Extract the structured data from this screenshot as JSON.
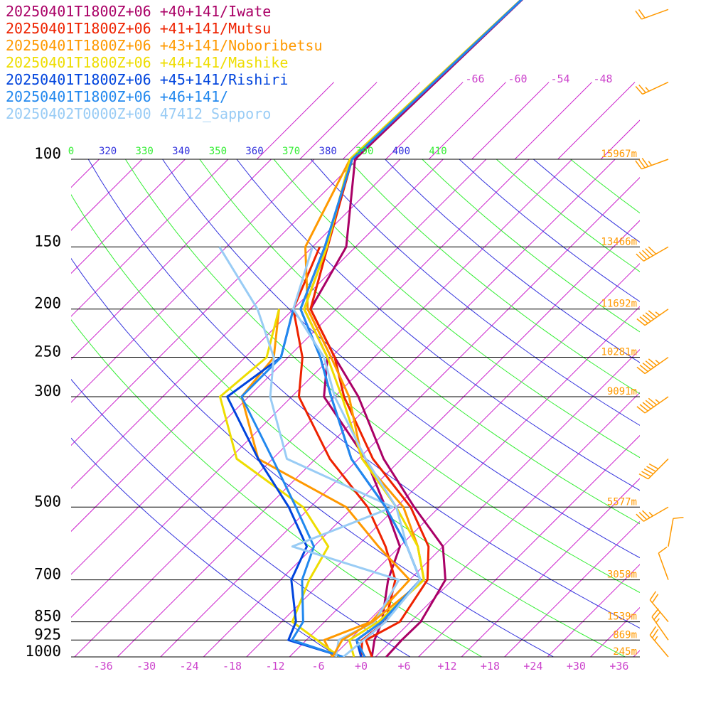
{
  "legend": [
    {
      "text": "20250401T1800Z+06 +40+141/Iwate",
      "color": "#aa0066"
    },
    {
      "text": "20250401T1800Z+06 +41+141/Mutsu",
      "color": "#ee2200"
    },
    {
      "text": "20250401T1800Z+06 +43+141/Noboribetsu",
      "color": "#ff9900"
    },
    {
      "text": "20250401T1800Z+06 +44+141/Mashike",
      "color": "#eedd00"
    },
    {
      "text": "20250401T1800Z+06 +45+141/Rishiri",
      "color": "#0044dd"
    },
    {
      "text": "20250401T1800Z+06 +46+141/",
      "color": "#2288ee"
    },
    {
      "text": "20250402T0000Z+00 47412_Sapporo",
      "color": "#99ccf5"
    }
  ],
  "colors": {
    "isotherm": "#cc22cc",
    "dry_adiabat": "#33ee33",
    "moist_adiabat": "#3333dd",
    "height_label": "#ff9900",
    "wind_barb": "#ff9900",
    "pressure_line": "#000000"
  },
  "chart_data": {
    "type": "line",
    "subtype": "skew-T log-P diagram",
    "xlabel": "",
    "ylabel": "",
    "x_ticks": [
      "-36",
      "-30",
      "-24",
      "-18",
      "-12",
      "-6",
      "+0",
      "+6",
      "+12",
      "+18",
      "+24",
      "+30",
      "+36"
    ],
    "upper_temperature_labels": [
      "-66",
      "-60",
      "-54",
      "-48"
    ],
    "theta_labels": [
      {
        "text": "0",
        "family": "dry"
      },
      {
        "text": "320",
        "family": "moist"
      },
      {
        "text": "330",
        "family": "dry"
      },
      {
        "text": "340",
        "family": "moist"
      },
      {
        "text": "350",
        "family": "dry"
      },
      {
        "text": "360",
        "family": "moist"
      },
      {
        "text": "370",
        "family": "dry"
      },
      {
        "text": "380",
        "family": "moist"
      },
      {
        "text": "390",
        "family": "dry"
      },
      {
        "text": "400",
        "family": "moist"
      },
      {
        "text": "410",
        "family": "dry"
      }
    ],
    "pressure_levels": [
      {
        "p": 100,
        "label": "100",
        "height": "15967m"
      },
      {
        "p": 150,
        "label": "150",
        "height": "13466m"
      },
      {
        "p": 200,
        "label": "200",
        "height": "11692m"
      },
      {
        "p": 250,
        "label": "250",
        "height": "10281m"
      },
      {
        "p": 300,
        "label": "300",
        "height": "9091m"
      },
      {
        "p": 500,
        "label": "500",
        "height": "5577m"
      },
      {
        "p": 700,
        "label": "700",
        "height": "3058m"
      },
      {
        "p": 850,
        "label": "850",
        "height": "1539m"
      },
      {
        "p": 925,
        "label": "925",
        "height": "869m"
      },
      {
        "p": 1000,
        "label": "1000",
        "height": "245m"
      }
    ],
    "ylim": [
      1000,
      100
    ],
    "series": [
      {
        "name": "20250401T1800Z+06 +40+141/Iwate",
        "kind": "temperature",
        "points": [
          [
            1000,
            3.5
          ],
          [
            925,
            3.3
          ],
          [
            850,
            3.4
          ],
          [
            700,
            1.0
          ],
          [
            600,
            -4.0
          ],
          [
            500,
            -13.5
          ],
          [
            400,
            -24.5
          ],
          [
            300,
            -36.7
          ],
          [
            250,
            -45.5
          ],
          [
            200,
            -55.6
          ],
          [
            150,
            -59.3
          ],
          [
            100,
            -70.3
          ],
          [
            40,
            -69.0
          ]
        ]
      },
      {
        "name": "20250401T1800Z+06 +41+141/Mutsu",
        "kind": "temperature",
        "points": [
          [
            1000,
            1.5
          ],
          [
            925,
            -1.7
          ],
          [
            850,
            0.5
          ],
          [
            700,
            -1.5
          ],
          [
            600,
            -6.0
          ],
          [
            500,
            -14.0
          ],
          [
            400,
            -26.0
          ],
          [
            300,
            -38.7
          ],
          [
            250,
            -45.5
          ],
          [
            200,
            -55.6
          ],
          [
            150,
            -61.9
          ],
          [
            100,
            -70.7
          ],
          [
            40,
            -69.0
          ]
        ]
      },
      {
        "name": "20250401T1800Z+06 +43+141/Noboribetsu",
        "kind": "temperature",
        "points": [
          [
            1000,
            -4.0
          ],
          [
            925,
            -5.0
          ],
          [
            850,
            -3.3
          ],
          [
            700,
            -2.0
          ],
          [
            600,
            -7.5
          ],
          [
            500,
            -15.0
          ],
          [
            400,
            -27.5
          ],
          [
            300,
            -38.0
          ],
          [
            250,
            -46.0
          ],
          [
            200,
            -56.0
          ],
          [
            150,
            -65.0
          ],
          [
            100,
            -71.0
          ],
          [
            40,
            -69.0
          ]
        ]
      },
      {
        "name": "20250401T1800Z+06 +44+141/Mashike",
        "kind": "temperature",
        "points": [
          [
            1000,
            -1.0
          ],
          [
            925,
            -4.0
          ],
          [
            850,
            -2.5
          ],
          [
            700,
            -2.0
          ],
          [
            600,
            -7.5
          ],
          [
            500,
            -16.0
          ],
          [
            400,
            -27.5
          ],
          [
            300,
            -39.0
          ],
          [
            250,
            -46.5
          ],
          [
            200,
            -56.5
          ],
          [
            150,
            -62.0
          ],
          [
            100,
            -71.0
          ],
          [
            40,
            -69.0
          ]
        ]
      },
      {
        "name": "20250401T1800Z+06 +45+141/Rishiri",
        "kind": "temperature",
        "points": [
          [
            1000,
            0.0
          ],
          [
            925,
            -3.0
          ],
          [
            850,
            -2.0
          ],
          [
            700,
            -2.5
          ],
          [
            600,
            -9.0
          ],
          [
            500,
            -17.5
          ],
          [
            400,
            -29.0
          ],
          [
            300,
            -40.5
          ],
          [
            250,
            -47.5
          ],
          [
            200,
            -57.0
          ],
          [
            150,
            -62.3
          ],
          [
            100,
            -70.7
          ],
          [
            40,
            -69.0
          ]
        ]
      },
      {
        "name": "20250401T1800Z+06 +46+141/",
        "kind": "temperature",
        "points": [
          [
            1000,
            0.5
          ],
          [
            925,
            -3.0
          ],
          [
            850,
            -2.0
          ],
          [
            700,
            -2.5
          ],
          [
            600,
            -9.0
          ],
          [
            500,
            -17.5
          ],
          [
            400,
            -29.0
          ],
          [
            300,
            -40.5
          ],
          [
            250,
            -47.5
          ],
          [
            200,
            -57.0
          ],
          [
            150,
            -62.3
          ],
          [
            100,
            -70.7
          ],
          [
            40,
            -69.0
          ]
        ]
      },
      {
        "name": "20250402T0000Z+00 47412_Sapporo",
        "kind": "temperature",
        "points": [
          [
            1000,
            -2.5
          ],
          [
            925,
            -2.0
          ],
          [
            850,
            -1.5
          ],
          [
            700,
            -2.5
          ],
          [
            600,
            -9.0
          ],
          [
            500,
            -16.0
          ],
          [
            400,
            -27.0
          ],
          [
            300,
            -40.0
          ],
          [
            250,
            -47.0
          ],
          [
            200,
            -58.0
          ],
          [
            150,
            -64.0
          ]
        ]
      },
      {
        "name": "20250401T1800Z+06 +40+141/Iwate",
        "kind": "dewpoint",
        "points": [
          [
            1000,
            1.5
          ],
          [
            925,
            -0.5
          ],
          [
            850,
            -2.0
          ],
          [
            700,
            -7.0
          ],
          [
            600,
            -10.0
          ],
          [
            500,
            -17.5
          ],
          [
            400,
            -27.0
          ],
          [
            300,
            -41.5
          ],
          [
            250,
            -46.5
          ],
          [
            200,
            -56.5
          ],
          [
            150,
            -62.0
          ]
        ]
      },
      {
        "name": "20250401T1800Z+06 +41+141/Mutsu",
        "kind": "dewpoint",
        "points": [
          [
            1000,
            0.0
          ],
          [
            925,
            -2.2
          ],
          [
            850,
            -1.5
          ],
          [
            700,
            -6.0
          ],
          [
            600,
            -12.0
          ],
          [
            500,
            -20.0
          ],
          [
            400,
            -32.0
          ],
          [
            300,
            -45.0
          ],
          [
            250,
            -50.0
          ],
          [
            200,
            -58.0
          ],
          [
            150,
            -63.0
          ]
        ]
      },
      {
        "name": "20250401T1800Z+06 +43+141/Noboribetsu",
        "kind": "dewpoint",
        "points": [
          [
            1000,
            -4.0
          ],
          [
            925,
            -7.5
          ],
          [
            850,
            -3.5
          ],
          [
            700,
            -4.0
          ],
          [
            600,
            -13.0
          ],
          [
            500,
            -23.0
          ],
          [
            400,
            -42.0
          ],
          [
            300,
            -53.0
          ],
          [
            250,
            -54.0
          ],
          [
            200,
            -60.0
          ]
        ]
      },
      {
        "name": "20250401T1800Z+06 +44+141/Mashike",
        "kind": "dewpoint",
        "points": [
          [
            1000,
            -3.0
          ],
          [
            925,
            -8.5
          ],
          [
            850,
            -14.5
          ],
          [
            700,
            -18.0
          ],
          [
            600,
            -20.0
          ],
          [
            500,
            -29.0
          ],
          [
            400,
            -45.0
          ],
          [
            300,
            -56.0
          ],
          [
            250,
            -55.0
          ],
          [
            200,
            -60.0
          ]
        ]
      },
      {
        "name": "20250401T1800Z+06 +45+141/Rishiri",
        "kind": "dewpoint",
        "points": [
          [
            1000,
            -2.5
          ],
          [
            925,
            -12.5
          ],
          [
            850,
            -14.0
          ],
          [
            700,
            -20.5
          ],
          [
            600,
            -23.0
          ],
          [
            500,
            -31.0
          ],
          [
            400,
            -42.0
          ],
          [
            300,
            -55.0
          ],
          [
            250,
            -53.0
          ],
          [
            200,
            -58.0
          ]
        ]
      },
      {
        "name": "20250401T1800Z+06 +46+141/",
        "kind": "dewpoint",
        "points": [
          [
            1000,
            -2.5
          ],
          [
            925,
            -12.0
          ],
          [
            850,
            -13.0
          ],
          [
            700,
            -19.0
          ],
          [
            600,
            -22.0
          ],
          [
            500,
            -30.0
          ],
          [
            400,
            -40.0
          ],
          [
            300,
            -53.0
          ],
          [
            250,
            -53.0
          ],
          [
            200,
            -58.0
          ]
        ]
      },
      {
        "name": "20250402T0000Z+00 47412_Sapporo",
        "kind": "dewpoint",
        "points": [
          [
            1000,
            -3.5
          ],
          [
            925,
            -5.5
          ],
          [
            850,
            -3.0
          ],
          [
            700,
            -5.5
          ],
          [
            600,
            -25.0
          ],
          [
            500,
            -16.5
          ],
          [
            400,
            -38.0
          ],
          [
            300,
            -49.0
          ],
          [
            250,
            -54.0
          ],
          [
            200,
            -63.0
          ],
          [
            150,
            -77.0
          ]
        ]
      }
    ],
    "wind_barbs": [
      {
        "p": 1000,
        "speed_kt": 25,
        "dir_deg": 320
      },
      {
        "p": 925,
        "speed_kt": 25,
        "dir_deg": 325
      },
      {
        "p": 850,
        "speed_kt": 20,
        "dir_deg": 320
      },
      {
        "p": 700,
        "speed_kt": 10,
        "dir_deg": 340
      },
      {
        "p": 600,
        "speed_kt": 10,
        "dir_deg": 10
      },
      {
        "p": 500,
        "speed_kt": 35,
        "dir_deg": 240
      },
      {
        "p": 400,
        "speed_kt": 50,
        "dir_deg": 225
      },
      {
        "p": 300,
        "speed_kt": 55,
        "dir_deg": 235
      },
      {
        "p": 250,
        "speed_kt": 55,
        "dir_deg": 235
      },
      {
        "p": 200,
        "speed_kt": 55,
        "dir_deg": 235
      },
      {
        "p": 150,
        "speed_kt": 50,
        "dir_deg": 240
      },
      {
        "p": 100,
        "speed_kt": 35,
        "dir_deg": 250
      },
      {
        "p": 70,
        "speed_kt": 25,
        "dir_deg": 245
      },
      {
        "p": 50,
        "speed_kt": 20,
        "dir_deg": 250
      }
    ],
    "grid": true
  }
}
